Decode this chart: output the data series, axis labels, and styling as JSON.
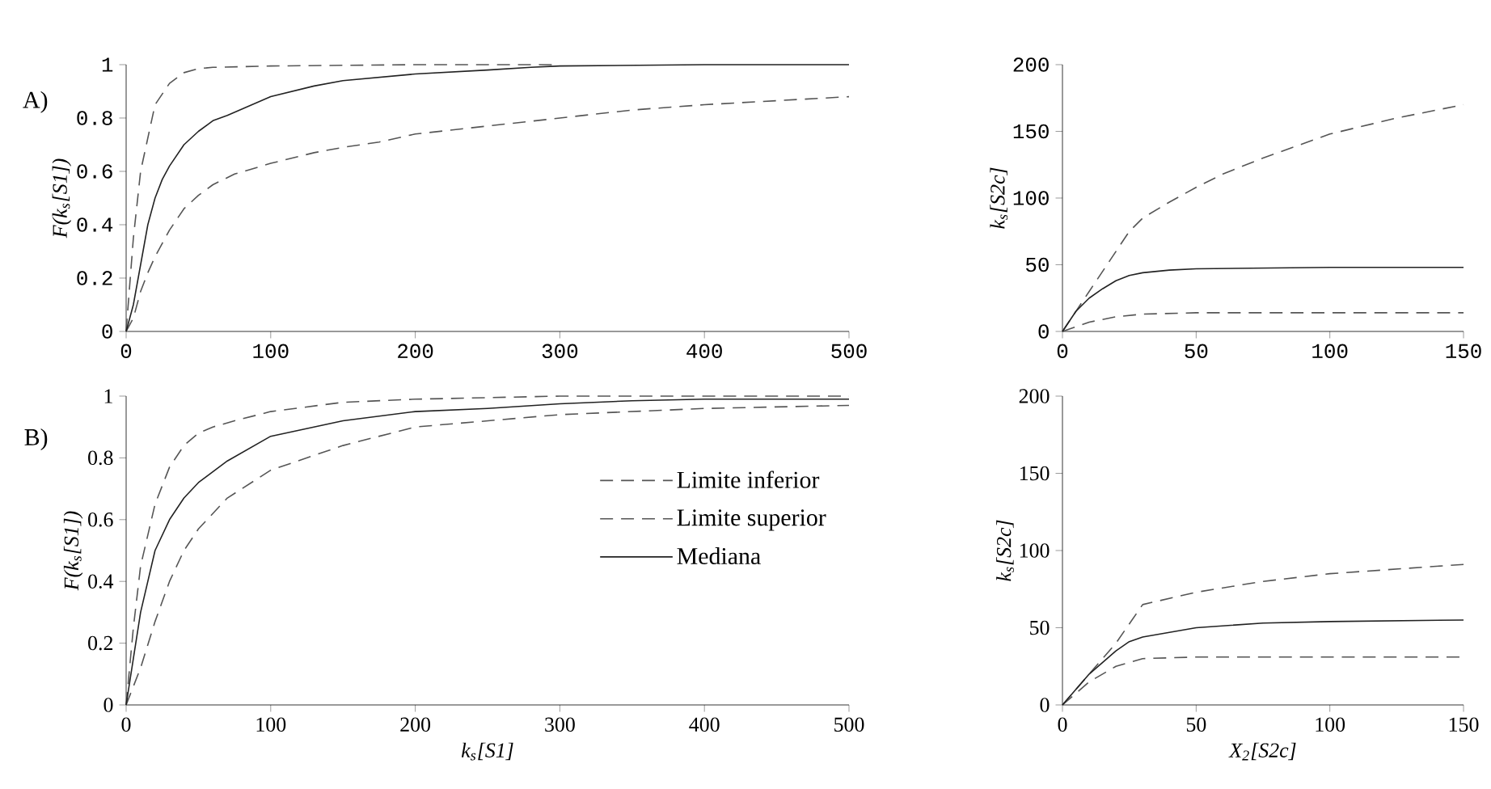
{
  "chart_data": [
    {
      "type": "line",
      "annotations": [
        "A)"
      ],
      "ylabel": "F(k$_{s}$[S1])",
      "xlim": [
        0,
        500
      ],
      "ylim": [
        0,
        1
      ],
      "xticks": [
        0,
        100,
        200,
        300,
        400,
        500
      ],
      "yticks": [
        0,
        0.2,
        0.4,
        0.6,
        0.8,
        1
      ],
      "series": [
        {
          "color": "#555555",
          "line_style": "dashed",
          "x": [
            0,
            5,
            10,
            15,
            20,
            30,
            40,
            50,
            60,
            75,
            100,
            130,
            150,
            175,
            200,
            250,
            300,
            350,
            400,
            500
          ],
          "values": [
            0,
            0.05,
            0.15,
            0.22,
            0.28,
            0.38,
            0.46,
            0.51,
            0.55,
            0.59,
            0.63,
            0.67,
            0.69,
            0.71,
            0.74,
            0.77,
            0.8,
            0.83,
            0.85,
            0.88
          ]
        },
        {
          "color": "#555555",
          "line_style": "dashed",
          "x": [
            0,
            5,
            10,
            20,
            30,
            40,
            50,
            60,
            100,
            200,
            300
          ],
          "values": [
            0,
            0.35,
            0.6,
            0.85,
            0.93,
            0.97,
            0.985,
            0.99,
            0.995,
            1,
            1
          ]
        },
        {
          "color": "#222222",
          "line_style": "solid",
          "x": [
            0,
            5,
            10,
            15,
            20,
            25,
            30,
            40,
            50,
            60,
            70,
            100,
            130,
            150,
            200,
            250,
            280,
            300,
            400,
            500
          ],
          "values": [
            0,
            0.1,
            0.25,
            0.4,
            0.5,
            0.57,
            0.62,
            0.7,
            0.75,
            0.79,
            0.81,
            0.88,
            0.92,
            0.94,
            0.965,
            0.98,
            0.99,
            0.995,
            1,
            1
          ]
        }
      ]
    },
    {
      "type": "line",
      "ylabel": "k$_{s}$[S2c]",
      "xlim": [
        0,
        150
      ],
      "ylim": [
        0,
        200
      ],
      "xticks": [
        0,
        50,
        100,
        150
      ],
      "yticks": [
        0,
        50,
        100,
        150,
        200
      ],
      "series": [
        {
          "color": "#555555",
          "line_style": "dashed",
          "x": [
            0,
            10,
            20,
            30,
            50,
            150
          ],
          "values": [
            0,
            7,
            11,
            13,
            14,
            14
          ]
        },
        {
          "color": "#555555",
          "line_style": "dashed",
          "x": [
            0,
            10,
            20,
            25,
            30,
            40,
            50,
            60,
            75,
            100,
            125,
            150
          ],
          "values": [
            0,
            30,
            60,
            75,
            85,
            97,
            108,
            118,
            130,
            148,
            160,
            170
          ]
        },
        {
          "color": "#222222",
          "line_style": "solid",
          "x": [
            0,
            5,
            10,
            15,
            20,
            25,
            30,
            40,
            50,
            100,
            150
          ],
          "values": [
            0,
            15,
            25,
            32,
            38,
            42,
            44,
            46,
            47,
            48,
            48
          ]
        }
      ]
    },
    {
      "type": "line",
      "annotations": [
        "B)"
      ],
      "xlabel": "k$_{s}$[S1]",
      "ylabel": "F(k$_{s}$[S1])",
      "legend": "right",
      "xlim": [
        0,
        500
      ],
      "ylim": [
        0,
        1
      ],
      "xticks": [
        0,
        100,
        200,
        300,
        400,
        500
      ],
      "yticks": [
        0,
        0.2,
        0.4,
        0.6,
        0.8,
        1
      ],
      "series": [
        {
          "name": "Limite inferior",
          "color": "#555555",
          "line_style": "dashed",
          "x": [
            0,
            10,
            20,
            30,
            40,
            50,
            70,
            100,
            150,
            200,
            300,
            400,
            500
          ],
          "values": [
            0,
            0.12,
            0.27,
            0.4,
            0.5,
            0.57,
            0.67,
            0.76,
            0.84,
            0.9,
            0.94,
            0.96,
            0.97
          ]
        },
        {
          "name": "Limite superior",
          "color": "#555555",
          "line_style": "dashed",
          "x": [
            0,
            5,
            10,
            20,
            30,
            40,
            50,
            60,
            75,
            100,
            150,
            200,
            300,
            400,
            500
          ],
          "values": [
            0,
            0.25,
            0.45,
            0.65,
            0.77,
            0.84,
            0.88,
            0.9,
            0.92,
            0.95,
            0.98,
            0.99,
            1,
            1,
            1
          ]
        },
        {
          "name": "Mediana",
          "color": "#222222",
          "line_style": "solid",
          "x": [
            0,
            5,
            10,
            20,
            30,
            40,
            50,
            70,
            100,
            150,
            200,
            250,
            300,
            350,
            400,
            500
          ],
          "values": [
            0,
            0.15,
            0.3,
            0.5,
            0.6,
            0.67,
            0.72,
            0.79,
            0.87,
            0.92,
            0.95,
            0.96,
            0.975,
            0.985,
            0.99,
            0.99
          ]
        }
      ]
    },
    {
      "type": "line",
      "xlabel": "X$_{2}$[S2c]",
      "ylabel": "k$_{s}$[S2c]",
      "xlim": [
        0,
        150
      ],
      "ylim": [
        0,
        200
      ],
      "xticks": [
        0,
        50,
        100,
        150
      ],
      "yticks": [
        0,
        50,
        100,
        150,
        200
      ],
      "series": [
        {
          "color": "#555555",
          "line_style": "dashed",
          "x": [
            0,
            10,
            20,
            30,
            50,
            150
          ],
          "values": [
            0,
            15,
            25,
            30,
            31,
            31
          ]
        },
        {
          "color": "#555555",
          "line_style": "dashed",
          "x": [
            0,
            10,
            20,
            30,
            50,
            75,
            100,
            150
          ],
          "values": [
            0,
            20,
            40,
            65,
            73,
            80,
            85,
            91
          ]
        },
        {
          "color": "#222222",
          "line_style": "solid",
          "x": [
            0,
            10,
            20,
            25,
            30,
            50,
            75,
            100,
            150
          ],
          "values": [
            0,
            20,
            35,
            41,
            44,
            50,
            53,
            54,
            55
          ]
        }
      ]
    }
  ]
}
